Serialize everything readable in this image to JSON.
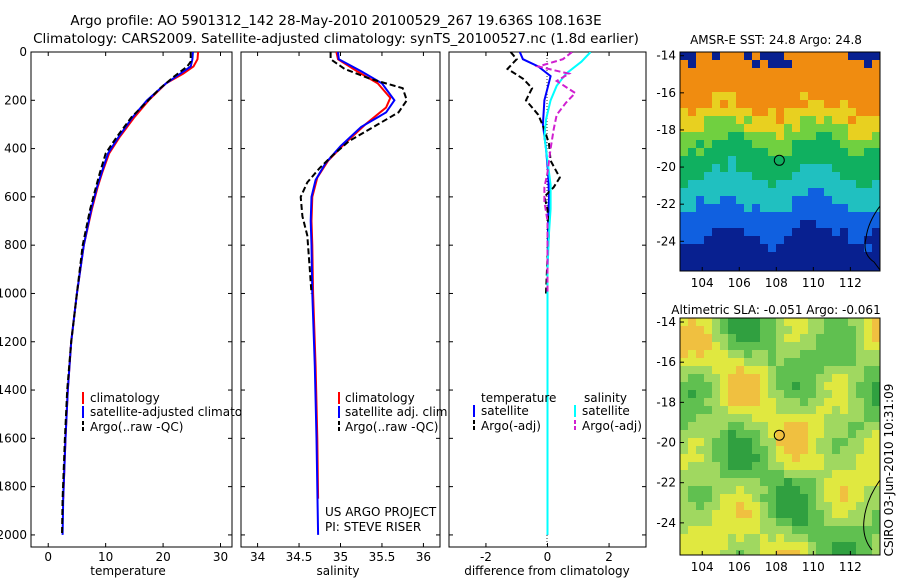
{
  "header": {
    "line1": "Argo profile: AO 5901312_142 28-May-2010 20100529_267 19.636S 108.163E",
    "line2": "Climatology: CARS2009. Satellite-adjusted climatology: synTS_20100527.nc (1.8d earlier)"
  },
  "side_label": "CSIRO 03-Jun-2010 10:31:09",
  "colors": {
    "climatology": "#ff0000",
    "satellite": "#0000ff",
    "argo": "#000000",
    "sat_salinity": "#00ffff",
    "argo_salinity": "#d020d0"
  },
  "chart_data": [
    {
      "type": "line",
      "xlabel": "temperature",
      "ylabel": "",
      "xlim": [
        -3,
        32
      ],
      "ylim": [
        2050,
        0
      ],
      "xticks": [
        0,
        10,
        20,
        30
      ],
      "yticks": [
        0,
        200,
        400,
        600,
        800,
        1000,
        1200,
        1400,
        1600,
        1800,
        2000
      ],
      "legend": [
        "climatology",
        "satellite-adjusted climatology",
        "Argo(..raw -QC)"
      ],
      "series": [
        {
          "name": "climatology",
          "color": "climatology",
          "dash": "solid",
          "points": [
            [
              26.1,
              0
            ],
            [
              26.0,
              30
            ],
            [
              25.3,
              60
            ],
            [
              23.5,
              90
            ],
            [
              20.5,
              130
            ],
            [
              17.5,
              200
            ],
            [
              15.0,
              270
            ],
            [
              12.5,
              350
            ],
            [
              10.6,
              420
            ],
            [
              9.4,
              500
            ],
            [
              8.6,
              560
            ],
            [
              7.6,
              650
            ],
            [
              6.2,
              800
            ],
            [
              5.0,
              1000
            ],
            [
              4.0,
              1200
            ],
            [
              3.4,
              1400
            ],
            [
              3.0,
              1600
            ],
            [
              2.6,
              1850
            ]
          ]
        },
        {
          "name": "satellite-adjusted climatology",
          "color": "satellite",
          "dash": "solid",
          "points": [
            [
              25.2,
              0
            ],
            [
              25.1,
              30
            ],
            [
              24.8,
              60
            ],
            [
              23.0,
              90
            ],
            [
              20.5,
              130
            ],
            [
              17.2,
              200
            ],
            [
              14.7,
              270
            ],
            [
              12.3,
              350
            ],
            [
              10.4,
              420
            ],
            [
              9.3,
              500
            ],
            [
              8.5,
              560
            ],
            [
              7.5,
              650
            ],
            [
              6.2,
              800
            ],
            [
              5.0,
              1000
            ],
            [
              4.0,
              1200
            ],
            [
              3.4,
              1400
            ],
            [
              3.0,
              1600
            ],
            [
              2.6,
              1850
            ],
            [
              2.5,
              2000
            ]
          ]
        },
        {
          "name": "Argo(..raw -QC)",
          "color": "argo",
          "dash": "dash",
          "points": [
            [
              24.8,
              0
            ],
            [
              24.8,
              40
            ],
            [
              24.2,
              60
            ],
            [
              22.0,
              100
            ],
            [
              19.5,
              150
            ],
            [
              17.0,
              210
            ],
            [
              14.5,
              270
            ],
            [
              12.0,
              350
            ],
            [
              10.0,
              420
            ],
            [
              9.0,
              500
            ],
            [
              8.2,
              570
            ],
            [
              7.3,
              650
            ],
            [
              6.0,
              800
            ],
            [
              5.0,
              1000
            ],
            [
              4.0,
              1200
            ],
            [
              3.3,
              1400
            ],
            [
              2.9,
              1600
            ],
            [
              2.5,
              1850
            ],
            [
              2.4,
              2000
            ]
          ]
        }
      ]
    },
    {
      "type": "line",
      "xlabel": "salinity",
      "xlim": [
        33.8,
        36.2
      ],
      "ylim": [
        2050,
        0
      ],
      "xticks": [
        34,
        34.5,
        35,
        35.5,
        36
      ],
      "legend": [
        "climatology",
        "satellite adj. clim.",
        "Argo(..raw -QC)"
      ],
      "annotation": [
        "US ARGO PROJECT",
        "PI: STEVE RISER"
      ],
      "series": [
        {
          "name": "climatology",
          "color": "climatology",
          "dash": "solid",
          "points": [
            [
              34.95,
              0
            ],
            [
              34.97,
              30
            ],
            [
              35.2,
              80
            ],
            [
              35.45,
              130
            ],
            [
              35.6,
              190
            ],
            [
              35.55,
              230
            ],
            [
              35.3,
              300
            ],
            [
              35.05,
              380
            ],
            [
              34.85,
              450
            ],
            [
              34.72,
              520
            ],
            [
              34.66,
              600
            ],
            [
              34.65,
              700
            ],
            [
              34.66,
              800
            ],
            [
              34.67,
              1000
            ],
            [
              34.7,
              1300
            ],
            [
              34.72,
              1600
            ],
            [
              34.73,
              1850
            ]
          ]
        },
        {
          "name": "satellite adj. clim.",
          "color": "satellite",
          "dash": "solid",
          "points": [
            [
              34.97,
              0
            ],
            [
              34.98,
              30
            ],
            [
              35.25,
              80
            ],
            [
              35.5,
              130
            ],
            [
              35.65,
              200
            ],
            [
              35.55,
              250
            ],
            [
              35.25,
              310
            ],
            [
              35.0,
              390
            ],
            [
              34.82,
              460
            ],
            [
              34.7,
              530
            ],
            [
              34.65,
              600
            ],
            [
              34.64,
              700
            ],
            [
              34.65,
              800
            ],
            [
              34.66,
              1000
            ],
            [
              34.69,
              1300
            ],
            [
              34.71,
              1600
            ],
            [
              34.73,
              2000
            ]
          ]
        },
        {
          "name": "Argo(..raw -QC)",
          "color": "argo",
          "dash": "dash",
          "points": [
            [
              34.88,
              0
            ],
            [
              34.88,
              30
            ],
            [
              35.05,
              70
            ],
            [
              35.35,
              110
            ],
            [
              35.75,
              150
            ],
            [
              35.8,
              200
            ],
            [
              35.7,
              250
            ],
            [
              35.45,
              300
            ],
            [
              35.1,
              370
            ],
            [
              34.9,
              430
            ],
            [
              34.75,
              480
            ],
            [
              34.6,
              540
            ],
            [
              34.52,
              600
            ],
            [
              34.54,
              680
            ],
            [
              34.6,
              760
            ],
            [
              34.63,
              900
            ],
            [
              34.65,
              1000
            ]
          ]
        }
      ]
    },
    {
      "type": "line",
      "xlabel": "difference from climatology",
      "xlim": [
        -3.2,
        3.2
      ],
      "ylim": [
        2050,
        0
      ],
      "xticks": [
        -2,
        0,
        2
      ],
      "legend_titles": [
        "temperature",
        "salinity"
      ],
      "legend": [
        "satellite",
        "Argo(-adj)",
        "satellite",
        "Argo(-adj)"
      ],
      "series": [
        {
          "name": "temperature satellite",
          "color": "satellite",
          "dash": "solid",
          "points": [
            [
              -0.9,
              0
            ],
            [
              -0.8,
              30
            ],
            [
              -0.3,
              60
            ],
            [
              0.1,
              100
            ],
            [
              0.0,
              150
            ],
            [
              -0.1,
              200
            ],
            [
              -0.15,
              300
            ],
            [
              -0.05,
              400
            ],
            [
              0.02,
              500
            ],
            [
              0.05,
              600
            ],
            [
              0.02,
              700
            ],
            [
              0.0,
              900
            ],
            [
              0.0,
              1200
            ],
            [
              0.0,
              1500
            ],
            [
              0.0,
              1800
            ],
            [
              0.0,
              2000
            ]
          ]
        },
        {
          "name": "temperature Argo(-adj)",
          "color": "argo",
          "dash": "dash",
          "points": [
            [
              -1.2,
              0
            ],
            [
              -1.0,
              30
            ],
            [
              -1.3,
              70
            ],
            [
              -0.8,
              110
            ],
            [
              -0.5,
              150
            ],
            [
              -0.7,
              200
            ],
            [
              -0.3,
              260
            ],
            [
              -0.1,
              320
            ],
            [
              0.05,
              380
            ],
            [
              0.1,
              450
            ],
            [
              0.4,
              520
            ],
            [
              0.2,
              560
            ],
            [
              -0.1,
              600
            ],
            [
              0.0,
              650
            ],
            [
              0.05,
              750
            ],
            [
              0.0,
              850
            ],
            [
              -0.05,
              1000
            ]
          ]
        },
        {
          "name": "salinity satellite",
          "color": "sat_salinity",
          "dash": "solid",
          "points": [
            [
              1.4,
              0
            ],
            [
              1.1,
              40
            ],
            [
              0.6,
              90
            ],
            [
              0.3,
              140
            ],
            [
              0.1,
              200
            ],
            [
              -0.05,
              280
            ],
            [
              -0.1,
              350
            ],
            [
              0.0,
              450
            ],
            [
              0.1,
              550
            ],
            [
              0.1,
              650
            ],
            [
              0.05,
              750
            ],
            [
              0.0,
              900
            ],
            [
              0.0,
              1200
            ],
            [
              0.0,
              1500
            ],
            [
              0.0,
              1800
            ],
            [
              0.0,
              2000
            ]
          ]
        },
        {
          "name": "salinity Argo(-adj)",
          "color": "argo_salinity",
          "dash": "dash",
          "points": [
            [
              0.8,
              0
            ],
            [
              0.5,
              30
            ],
            [
              -0.3,
              60
            ],
            [
              0.7,
              90
            ],
            [
              0.3,
              120
            ],
            [
              0.9,
              170
            ],
            [
              0.6,
              210
            ],
            [
              0.3,
              260
            ],
            [
              0.2,
              320
            ],
            [
              0.1,
              400
            ],
            [
              0.0,
              500
            ],
            [
              -0.1,
              560
            ],
            [
              -0.1,
              620
            ],
            [
              0.0,
              700
            ],
            [
              0.0,
              800
            ],
            [
              0.0,
              900
            ],
            [
              0.0,
              1000
            ]
          ]
        }
      ]
    },
    {
      "type": "heatmap",
      "title": "AMSR-E SST: 24.8 Argo: 24.8",
      "xlim": [
        102.8,
        113.6
      ],
      "ylim": [
        -25.6,
        -13.8
      ],
      "xticks": [
        104,
        106,
        108,
        110,
        112
      ],
      "yticks": [
        -14,
        -16,
        -18,
        -20,
        -22,
        -24
      ],
      "marker": [
        108.163,
        -19.636
      ],
      "bands": [
        {
          "from": -13.8,
          "to": -16.6,
          "color": "#f08c10"
        },
        {
          "from": -16.6,
          "to": -17.6,
          "color": "#e8d020"
        },
        {
          "from": -17.6,
          "to": -18.6,
          "color": "#70d040"
        },
        {
          "from": -18.6,
          "to": -20.2,
          "color": "#10b060"
        },
        {
          "from": -20.2,
          "to": -21.8,
          "color": "#20c0c0"
        },
        {
          "from": -21.8,
          "to": -23.4,
          "color": "#1060e0"
        },
        {
          "from": -23.4,
          "to": -25.6,
          "color": "#082090"
        }
      ]
    },
    {
      "type": "heatmap",
      "title": "Altimetric SLA: -0.051 Argo: -0.061",
      "xlim": [
        102.8,
        113.6
      ],
      "ylim": [
        -25.6,
        -13.8
      ],
      "xticks": [
        104,
        106,
        108,
        110,
        112
      ],
      "yticks": [
        -14,
        -16,
        -18,
        -20,
        -22,
        -24
      ],
      "marker": [
        108.163,
        -19.636
      ],
      "palette": [
        "#30a040",
        "#60c050",
        "#a0d860",
        "#e0e840",
        "#f0c040"
      ]
    }
  ]
}
